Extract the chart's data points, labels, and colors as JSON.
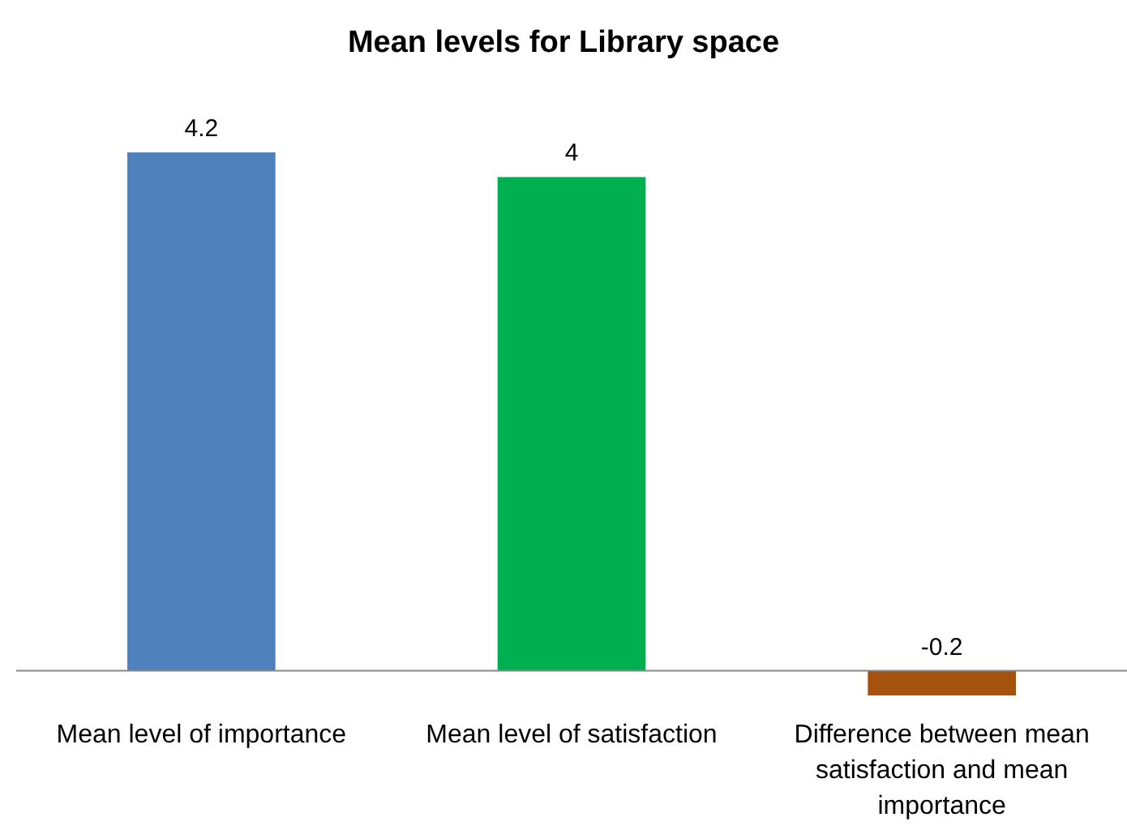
{
  "chart_data": {
    "type": "bar",
    "title": "Mean levels for Library space",
    "categories": [
      "Mean level of importance",
      "Mean level of satisfaction",
      "Difference between mean satisfaction and mean importance"
    ],
    "values": [
      4.2,
      4,
      -0.2
    ],
    "colors": [
      "#4f81bd",
      "#00b050",
      "#a5520f"
    ],
    "data_labels": true
  }
}
